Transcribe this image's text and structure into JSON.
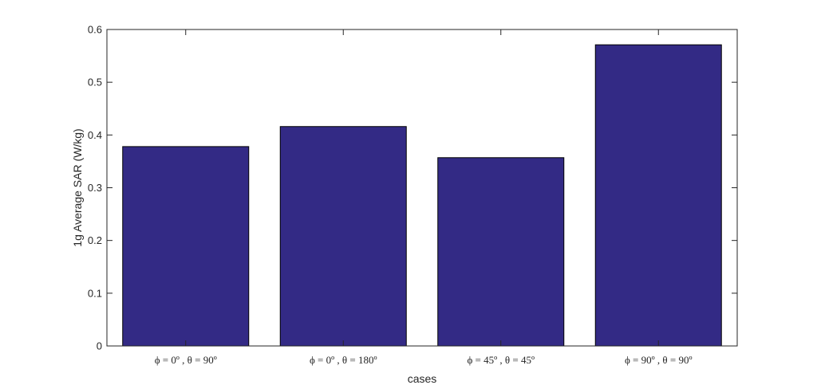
{
  "chart_data": {
    "type": "bar",
    "categories": [
      "ϕ = 0º , θ = 90º",
      "ϕ = 0º , θ = 180º",
      "ϕ = 45º , θ = 45º",
      "ϕ = 90º , θ = 90º"
    ],
    "values": [
      0.378,
      0.416,
      0.357,
      0.571
    ],
    "xlabel": "cases",
    "ylabel": "1g Average SAR (W/kg)",
    "ylim": [
      0,
      0.6
    ],
    "yticks": [
      "0",
      "0.1",
      "0.2",
      "0.3",
      "0.4",
      "0.5",
      "0.6"
    ],
    "grid": false,
    "bar_color": "#332a85",
    "bar_edge_color": "#000000"
  }
}
